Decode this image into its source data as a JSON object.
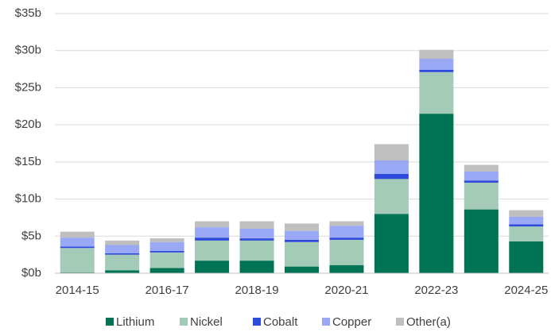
{
  "chart_data": {
    "type": "stacked_bar",
    "categories": [
      "2014-15",
      null,
      "2016-17",
      null,
      "2018-19",
      null,
      "2020-21",
      null,
      "2022-23",
      null,
      "2024-25"
    ],
    "series": [
      {
        "name": "Lithium",
        "color": "#007454",
        "values": [
          0.1,
          0.4,
          0.7,
          1.7,
          1.7,
          0.9,
          1.1,
          8.0,
          21.5,
          8.6,
          4.3
        ]
      },
      {
        "name": "Nickel",
        "color": "#a3cbb8",
        "values": [
          3.3,
          2.1,
          2.1,
          2.7,
          2.7,
          3.3,
          3.4,
          4.7,
          5.6,
          3.6,
          2.0
        ]
      },
      {
        "name": "Cobalt",
        "color": "#2f4bdb",
        "values": [
          0.2,
          0.2,
          0.2,
          0.4,
          0.3,
          0.3,
          0.3,
          0.7,
          0.3,
          0.3,
          0.3
        ]
      },
      {
        "name": "Copper",
        "color": "#9aa9f5",
        "values": [
          1.2,
          1.1,
          1.2,
          1.4,
          1.3,
          1.2,
          1.6,
          1.8,
          1.5,
          1.2,
          1.0
        ]
      },
      {
        "name": "Other(a)",
        "color": "#bfbfbf",
        "values": [
          0.8,
          0.6,
          0.5,
          0.8,
          1.0,
          1.0,
          0.6,
          2.2,
          1.2,
          0.9,
          0.9
        ]
      }
    ],
    "ylim": [
      0,
      35
    ],
    "yticks": [
      {
        "value": 0,
        "label": "$0b"
      },
      {
        "value": 5,
        "label": "$5b"
      },
      {
        "value": 10,
        "label": "$10b"
      },
      {
        "value": 15,
        "label": "$15b"
      },
      {
        "value": 20,
        "label": "$20b"
      },
      {
        "value": 25,
        "label": "$25b"
      },
      {
        "value": 30,
        "label": "$30b"
      },
      {
        "value": 35,
        "label": "$35b"
      }
    ],
    "grid": true,
    "legend": "bottom"
  }
}
